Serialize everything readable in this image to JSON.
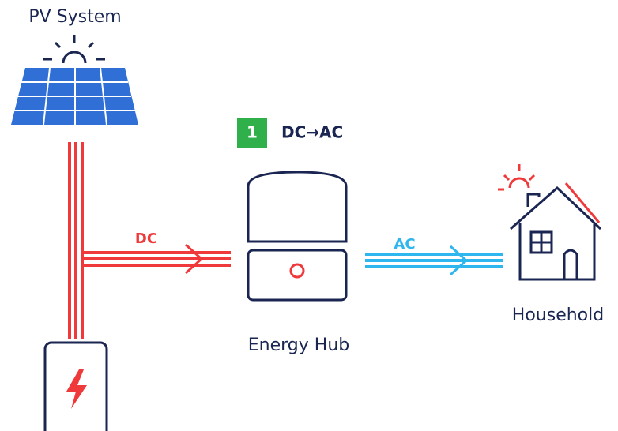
{
  "header": {
    "title": "PV System"
  },
  "step": {
    "number": "1",
    "label": "DC→AC"
  },
  "links": [
    {
      "label": "DC"
    },
    {
      "label": "AC"
    }
  ],
  "nodes": [
    {
      "label": "Energy Hub"
    },
    {
      "label": "Household"
    }
  ]
}
